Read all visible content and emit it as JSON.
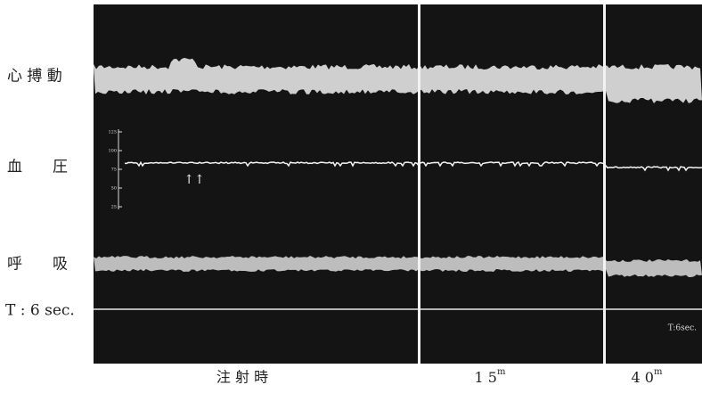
{
  "left_labels": {
    "heartbeat": "心 搏 動",
    "blood_pressure": "血　　圧",
    "respiration": "呼　　吸",
    "time_marker": "T : 6 sec."
  },
  "pressure_scale": [
    "125",
    "100",
    "75",
    "50",
    "25"
  ],
  "arrows": "↑↑",
  "segment_labels": [
    {
      "text": "注 射 時"
    },
    {
      "text": "1 5",
      "sup": "m"
    },
    {
      "text": "4 0",
      "sup": "m"
    }
  ],
  "time_marker_note": "T:6sec."
}
